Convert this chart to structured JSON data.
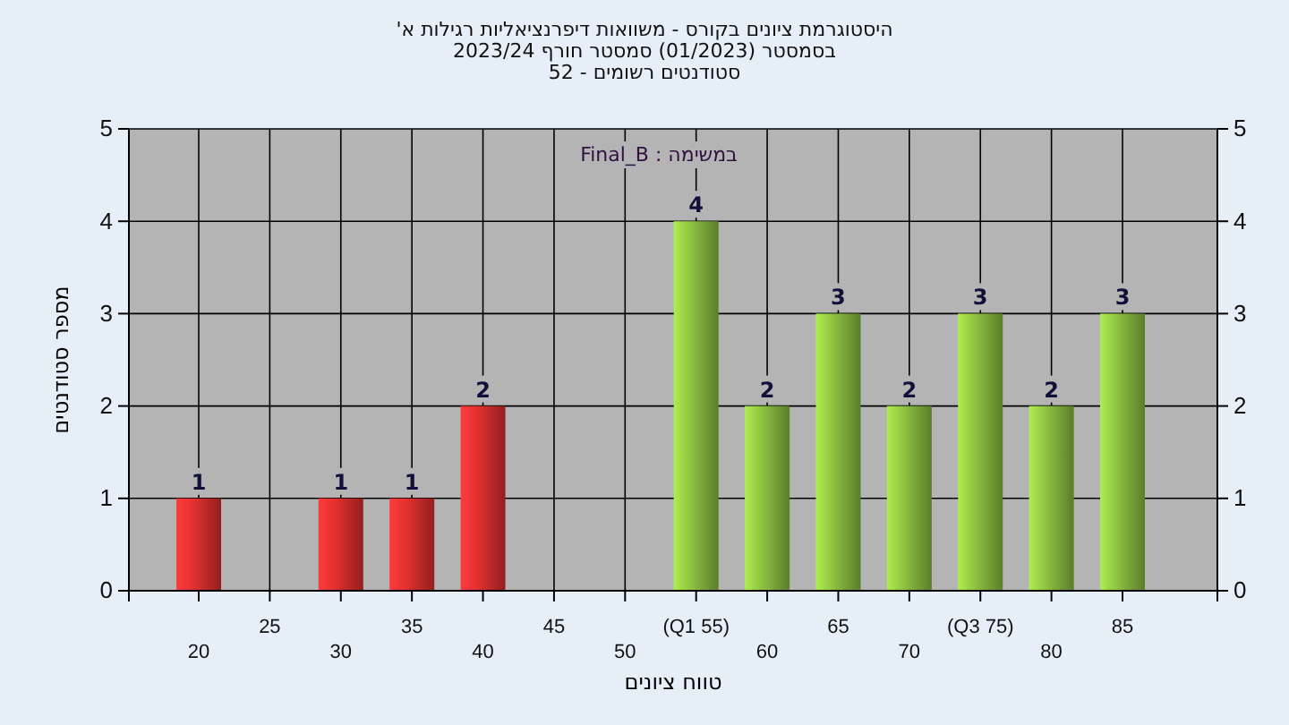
{
  "chart_data": {
    "type": "bar",
    "title": "היסטוגרמת ציונים בקורס - משוואות דיפרנציאליות רגילות א'",
    "subtitle": [
      "בסמסטר  (01/2023)  סמסטר חורף  2023/24",
      "סטודנטים רשומים - 52"
    ],
    "xlabel": "טווח ציונים",
    "ylabel": "מספר סטודנטים",
    "annotations": [
      "במשימה : Final_B"
    ],
    "categories": [
      "20",
      "25",
      "30",
      "35",
      "40",
      "45",
      "50",
      "(Q1 55)",
      "60",
      "65",
      "70",
      "(Q3 75)",
      "80",
      "85"
    ],
    "values": [
      1,
      null,
      1,
      1,
      2,
      null,
      null,
      4,
      2,
      3,
      2,
      3,
      2,
      3
    ],
    "colors": [
      "#e03030",
      null,
      "#e03030",
      "#e03030",
      "#e03030",
      null,
      null,
      "#8cc040",
      "#8cc040",
      "#8cc040",
      "#8cc040",
      "#8cc040",
      "#8cc040",
      "#8cc040"
    ],
    "ylim": [
      0,
      5
    ],
    "yticks": [
      0,
      1,
      2,
      3,
      4,
      5
    ],
    "y2lim": [
      0,
      5
    ],
    "y2ticks": [
      0,
      1,
      2,
      3,
      4,
      5
    ],
    "grid": true,
    "data_labels": true
  }
}
